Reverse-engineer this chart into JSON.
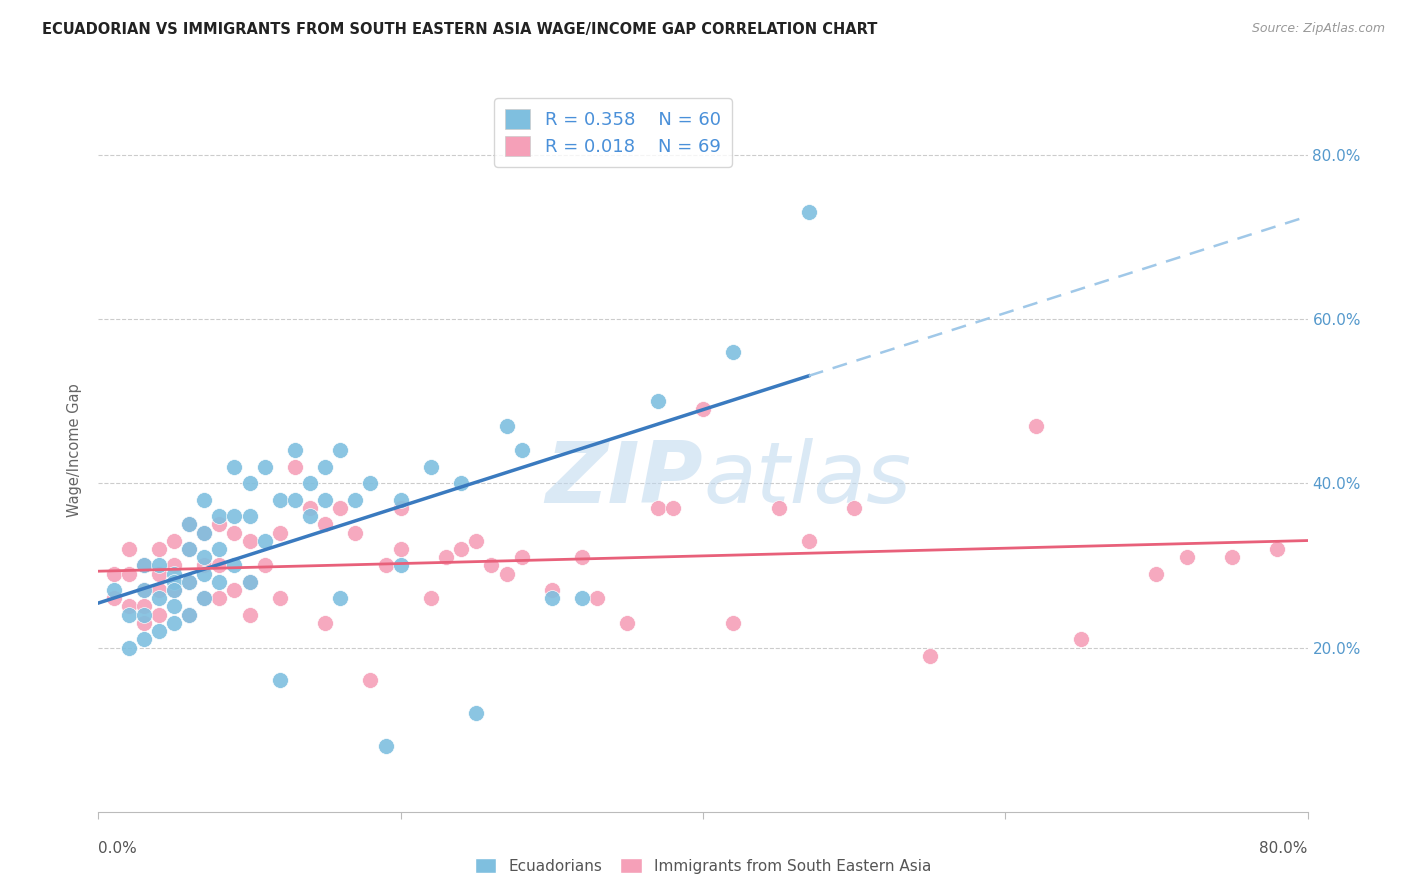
{
  "title": "ECUADORIAN VS IMMIGRANTS FROM SOUTH EASTERN ASIA WAGE/INCOME GAP CORRELATION CHART",
  "source": "Source: ZipAtlas.com",
  "ylabel": "Wage/Income Gap",
  "xlim": [
    0.0,
    0.8
  ],
  "ylim": [
    0.0,
    0.88
  ],
  "yticks": [
    0.2,
    0.4,
    0.6,
    0.8
  ],
  "ytick_labels": [
    "20.0%",
    "40.0%",
    "60.0%",
    "80.0%"
  ],
  "xticks": [
    0.0,
    0.2,
    0.4,
    0.6,
    0.8
  ],
  "legend_R1": "R = 0.358",
  "legend_N1": "N = 60",
  "legend_R2": "R = 0.018",
  "legend_N2": "N = 69",
  "blue_color": "#7fbfdf",
  "pink_color": "#f5a0b8",
  "blue_line_color": "#3a7abf",
  "pink_line_color": "#e8607a",
  "dashed_line_color": "#a0c8e8",
  "watermark_zip": "ZIP",
  "watermark_atlas": "atlas",
  "blue_x": [
    0.01,
    0.02,
    0.02,
    0.03,
    0.03,
    0.03,
    0.03,
    0.04,
    0.04,
    0.04,
    0.05,
    0.05,
    0.05,
    0.05,
    0.05,
    0.06,
    0.06,
    0.06,
    0.06,
    0.07,
    0.07,
    0.07,
    0.07,
    0.07,
    0.08,
    0.08,
    0.08,
    0.09,
    0.09,
    0.09,
    0.1,
    0.1,
    0.1,
    0.11,
    0.11,
    0.12,
    0.12,
    0.13,
    0.13,
    0.14,
    0.14,
    0.15,
    0.15,
    0.16,
    0.16,
    0.17,
    0.18,
    0.19,
    0.2,
    0.2,
    0.22,
    0.24,
    0.25,
    0.27,
    0.28,
    0.3,
    0.32,
    0.37,
    0.42,
    0.47
  ],
  "blue_y": [
    0.27,
    0.2,
    0.24,
    0.27,
    0.3,
    0.24,
    0.21,
    0.3,
    0.26,
    0.22,
    0.29,
    0.28,
    0.27,
    0.25,
    0.23,
    0.35,
    0.32,
    0.28,
    0.24,
    0.38,
    0.34,
    0.31,
    0.29,
    0.26,
    0.36,
    0.32,
    0.28,
    0.42,
    0.36,
    0.3,
    0.4,
    0.36,
    0.28,
    0.42,
    0.33,
    0.38,
    0.16,
    0.44,
    0.38,
    0.4,
    0.36,
    0.42,
    0.38,
    0.44,
    0.26,
    0.38,
    0.4,
    0.08,
    0.38,
    0.3,
    0.42,
    0.4,
    0.12,
    0.47,
    0.44,
    0.26,
    0.26,
    0.5,
    0.56,
    0.73
  ],
  "pink_x": [
    0.01,
    0.01,
    0.02,
    0.02,
    0.02,
    0.03,
    0.03,
    0.03,
    0.03,
    0.04,
    0.04,
    0.04,
    0.04,
    0.05,
    0.05,
    0.05,
    0.06,
    0.06,
    0.06,
    0.06,
    0.07,
    0.07,
    0.07,
    0.08,
    0.08,
    0.08,
    0.09,
    0.09,
    0.1,
    0.1,
    0.1,
    0.11,
    0.12,
    0.12,
    0.13,
    0.14,
    0.15,
    0.15,
    0.16,
    0.17,
    0.18,
    0.19,
    0.2,
    0.2,
    0.22,
    0.23,
    0.24,
    0.25,
    0.26,
    0.27,
    0.28,
    0.3,
    0.32,
    0.33,
    0.35,
    0.37,
    0.38,
    0.4,
    0.42,
    0.45,
    0.47,
    0.5,
    0.55,
    0.62,
    0.65,
    0.7,
    0.72,
    0.75,
    0.78
  ],
  "pink_y": [
    0.29,
    0.26,
    0.32,
    0.29,
    0.25,
    0.3,
    0.27,
    0.25,
    0.23,
    0.32,
    0.29,
    0.27,
    0.24,
    0.33,
    0.3,
    0.27,
    0.35,
    0.32,
    0.28,
    0.24,
    0.34,
    0.3,
    0.26,
    0.35,
    0.3,
    0.26,
    0.34,
    0.27,
    0.33,
    0.28,
    0.24,
    0.3,
    0.34,
    0.26,
    0.42,
    0.37,
    0.35,
    0.23,
    0.37,
    0.34,
    0.16,
    0.3,
    0.32,
    0.37,
    0.26,
    0.31,
    0.32,
    0.33,
    0.3,
    0.29,
    0.31,
    0.27,
    0.31,
    0.26,
    0.23,
    0.37,
    0.37,
    0.49,
    0.23,
    0.37,
    0.33,
    0.37,
    0.19,
    0.47,
    0.21,
    0.29,
    0.31,
    0.31,
    0.32
  ]
}
